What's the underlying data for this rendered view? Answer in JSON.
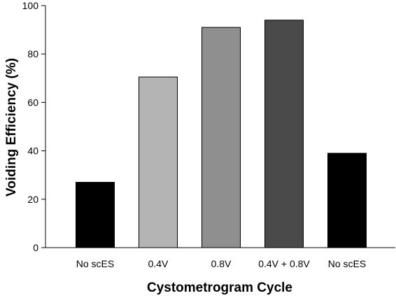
{
  "chart_data": {
    "type": "bar",
    "title": "",
    "xlabel": "Cystometrogram Cycle",
    "ylabel": "Voiding Efficiency (%)",
    "ylim": [
      0,
      100
    ],
    "yticks": [
      0,
      20,
      40,
      60,
      80,
      100
    ],
    "grid": false,
    "categories": [
      "No scES",
      "0.4V",
      "0.8V",
      "0.4V + 0.8V",
      "No scES"
    ],
    "values": [
      27,
      70.5,
      91,
      94,
      39
    ],
    "colors": [
      "#000000",
      "#b4b4b4",
      "#8f8f8f",
      "#4a4a4a",
      "#000000"
    ]
  }
}
